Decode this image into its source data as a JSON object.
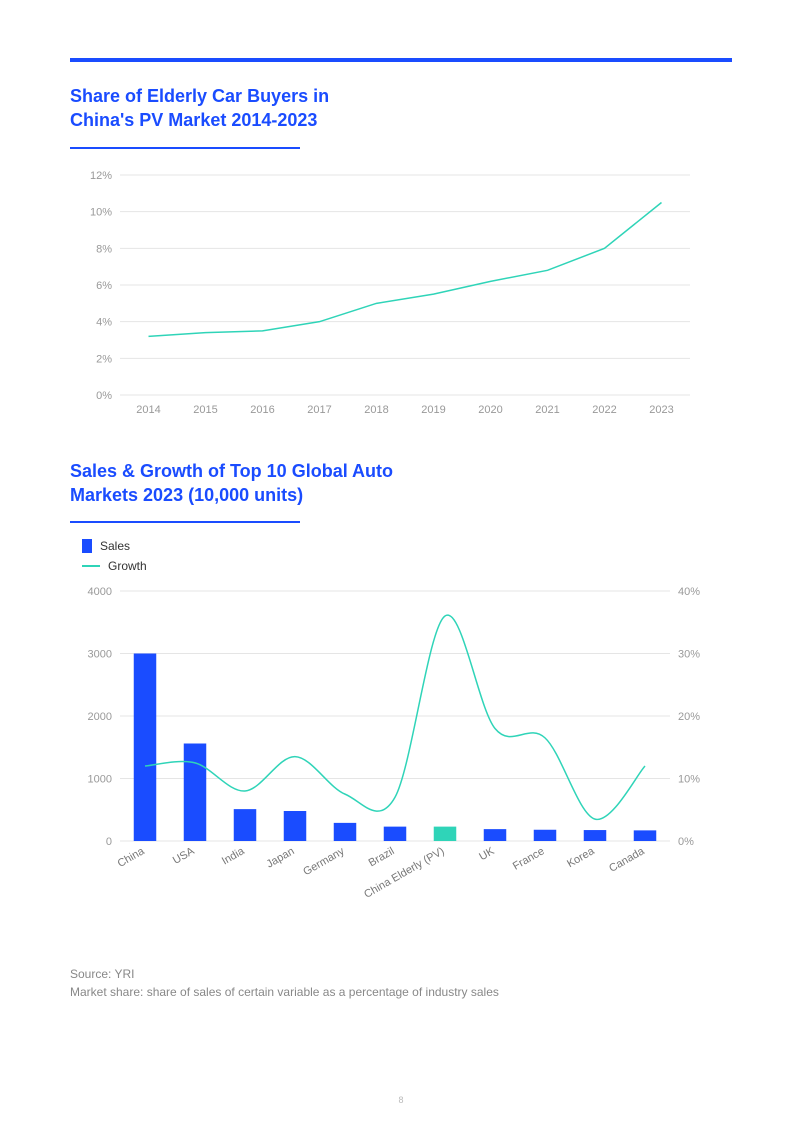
{
  "colors": {
    "accent_blue": "#1a4cff",
    "teal": "#2fd4b8",
    "grid": "#e5e5e5",
    "axis_text": "#999999",
    "x_text": "#777777",
    "footer_text": "#888888",
    "white": "#ffffff"
  },
  "chart1": {
    "title": "Share of Elderly Car Buyers in China's PV Market 2014-2023",
    "type": "line",
    "years": [
      "2014",
      "2015",
      "2016",
      "2017",
      "2018",
      "2019",
      "2020",
      "2021",
      "2022",
      "2023"
    ],
    "values": [
      3.2,
      3.4,
      3.5,
      4.0,
      5.0,
      5.5,
      6.2,
      6.8,
      8.0,
      10.5
    ],
    "ylim": [
      0,
      12
    ],
    "ytick_step": 2,
    "y_suffix": "%",
    "line_color": "#2fd4b8",
    "line_width": 1.5,
    "title_fontsize": 18,
    "label_fontsize": 11,
    "background_color": "#ffffff",
    "grid_color": "#e5e5e5"
  },
  "chart2": {
    "title": "Sales & Growth of Top 10 Global Auto Markets 2023 (10,000 units)",
    "type": "bar_line_combo",
    "legend": {
      "bar_label": "Sales",
      "line_label": "Growth"
    },
    "categories": [
      "China",
      "USA",
      "India",
      "Japan",
      "Germany",
      "Brazil",
      "China Elderly (PV)",
      "UK",
      "France",
      "Korea",
      "Canada"
    ],
    "sales": [
      3000,
      1560,
      510,
      480,
      290,
      230,
      230,
      190,
      180,
      175,
      170
    ],
    "growth_pct": [
      12.0,
      12.5,
      8.0,
      13.5,
      7.5,
      7.0,
      36.0,
      18.0,
      16.5,
      3.5,
      12.0
    ],
    "bar_colors": [
      "#1a4cff",
      "#1a4cff",
      "#1a4cff",
      "#1a4cff",
      "#1a4cff",
      "#1a4cff",
      "#2fd4b8",
      "#1a4cff",
      "#1a4cff",
      "#1a4cff",
      "#1a4cff"
    ],
    "line_color": "#2fd4b8",
    "ylim_left": [
      0,
      4000
    ],
    "ytick_left_step": 1000,
    "ylim_right": [
      0,
      40
    ],
    "ytick_right_step": 10,
    "y_right_suffix": "%",
    "bar_width": 0.45,
    "line_width": 1.5,
    "title_fontsize": 18,
    "label_fontsize": 11,
    "background_color": "#ffffff",
    "grid_color": "#e5e5e5"
  },
  "footer": {
    "source": "Source: YRI",
    "note": "Market share: share of sales of certain variable as a percentage of industry sales"
  },
  "page_number": "8"
}
